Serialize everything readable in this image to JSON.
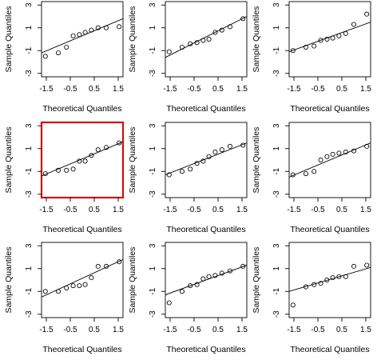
{
  "chart_data": [
    {
      "type": "scatter",
      "panel": 1,
      "highlighted": false,
      "xlabel": "Theoretical Quantiles",
      "ylabel": "Sample Quantiles",
      "xlim": [
        -1.7,
        1.7
      ],
      "ylim": [
        -3.3,
        3.3
      ],
      "x_ticks": [
        "-1.5",
        "-0.5",
        "0.5",
        "1.5"
      ],
      "y_ticks": [
        "3",
        "1",
        "-1",
        "-3"
      ],
      "points": [
        [
          -1.54,
          -1.5
        ],
        [
          -1.0,
          -1.2
        ],
        [
          -0.66,
          -0.7
        ],
        [
          -0.38,
          0.3
        ],
        [
          -0.12,
          0.4
        ],
        [
          0.12,
          0.6
        ],
        [
          0.38,
          0.8
        ],
        [
          0.66,
          1.0
        ],
        [
          1.0,
          1.0
        ],
        [
          1.54,
          1.1
        ]
      ],
      "line": [
        [
          -1.7,
          -1.2
        ],
        [
          1.7,
          1.8
        ]
      ]
    },
    {
      "type": "scatter",
      "panel": 2,
      "highlighted": false,
      "xlabel": "Theoretical Quantiles",
      "ylabel": "Sample Quantiles",
      "xlim": [
        -1.7,
        1.7
      ],
      "ylim": [
        -3.3,
        3.3
      ],
      "x_ticks": [
        "-1.5",
        "-0.5",
        "0.5",
        "1.5"
      ],
      "y_ticks": [
        "3",
        "1",
        "-1",
        "-3"
      ],
      "points": [
        [
          -1.54,
          -1.1
        ],
        [
          -1.0,
          -0.7
        ],
        [
          -0.66,
          -0.4
        ],
        [
          -0.38,
          -0.3
        ],
        [
          -0.12,
          -0.1
        ],
        [
          0.12,
          0.0
        ],
        [
          0.38,
          0.6
        ],
        [
          0.66,
          0.8
        ],
        [
          1.0,
          1.1
        ],
        [
          1.54,
          1.8
        ]
      ],
      "line": [
        [
          -1.7,
          -1.6
        ],
        [
          1.7,
          2.0
        ]
      ]
    },
    {
      "type": "scatter",
      "panel": 3,
      "highlighted": false,
      "xlabel": "Theoretical Quantiles",
      "ylabel": "Sample Quantiles",
      "xlim": [
        -1.7,
        1.7
      ],
      "ylim": [
        -3.3,
        3.3
      ],
      "x_ticks": [
        "-1.5",
        "-0.5",
        "0.5",
        "1.5"
      ],
      "y_ticks": [
        "3",
        "1",
        "-1",
        "-3"
      ],
      "points": [
        [
          -1.54,
          -1.0
        ],
        [
          -1.0,
          -0.7
        ],
        [
          -0.66,
          -0.6
        ],
        [
          -0.38,
          -0.1
        ],
        [
          -0.12,
          0.0
        ],
        [
          0.12,
          0.1
        ],
        [
          0.38,
          0.3
        ],
        [
          0.66,
          0.5
        ],
        [
          1.0,
          1.3
        ],
        [
          1.54,
          2.2
        ]
      ],
      "line": [
        [
          -1.7,
          -1.1
        ],
        [
          1.7,
          1.5
        ]
      ]
    },
    {
      "type": "scatter",
      "panel": 4,
      "highlighted": true,
      "xlabel": "Theoretical Quantiles",
      "ylabel": "Sample Quantiles",
      "xlim": [
        -1.7,
        1.7
      ],
      "ylim": [
        -3.3,
        3.3
      ],
      "x_ticks": [
        "-1.5",
        "-0.5",
        "0.5",
        "1.5"
      ],
      "y_ticks": [
        "3",
        "1",
        "-1",
        "-3"
      ],
      "points": [
        [
          -1.54,
          -1.2
        ],
        [
          -1.0,
          -0.9
        ],
        [
          -0.66,
          -0.9
        ],
        [
          -0.38,
          -0.8
        ],
        [
          -0.12,
          -0.1
        ],
        [
          0.12,
          -0.1
        ],
        [
          0.38,
          0.4
        ],
        [
          0.66,
          0.9
        ],
        [
          1.0,
          1.1
        ],
        [
          1.54,
          1.5
        ]
      ],
      "line": [
        [
          -1.7,
          -1.4
        ],
        [
          1.7,
          1.6
        ]
      ]
    },
    {
      "type": "scatter",
      "panel": 5,
      "highlighted": false,
      "xlabel": "Theoretical Quantiles",
      "ylabel": "Sample Quantiles",
      "xlim": [
        -1.7,
        1.7
      ],
      "ylim": [
        -3.3,
        3.3
      ],
      "x_ticks": [
        "-1.5",
        "-0.5",
        "0.5",
        "1.5"
      ],
      "y_ticks": [
        "3",
        "1",
        "-1",
        "-3"
      ],
      "points": [
        [
          -1.54,
          -1.3
        ],
        [
          -1.0,
          -1.0
        ],
        [
          -0.66,
          -0.8
        ],
        [
          -0.38,
          -0.3
        ],
        [
          -0.12,
          -0.1
        ],
        [
          0.12,
          0.3
        ],
        [
          0.38,
          0.7
        ],
        [
          0.66,
          0.9
        ],
        [
          1.0,
          1.2
        ],
        [
          1.54,
          1.3
        ]
      ],
      "line": [
        [
          -1.7,
          -1.3
        ],
        [
          1.7,
          1.5
        ]
      ]
    },
    {
      "type": "scatter",
      "panel": 6,
      "highlighted": false,
      "xlabel": "Theoretical Quantiles",
      "ylabel": "Sample Quantiles",
      "xlim": [
        -1.7,
        1.7
      ],
      "ylim": [
        -3.3,
        3.3
      ],
      "x_ticks": [
        "-1.5",
        "-0.5",
        "0.5",
        "1.5"
      ],
      "y_ticks": [
        "3",
        "1",
        "-1",
        "-3"
      ],
      "points": [
        [
          -1.54,
          -1.3
        ],
        [
          -1.0,
          -1.2
        ],
        [
          -0.66,
          -1.0
        ],
        [
          -0.38,
          0.0
        ],
        [
          -0.12,
          0.3
        ],
        [
          0.12,
          0.5
        ],
        [
          0.38,
          0.6
        ],
        [
          0.66,
          0.7
        ],
        [
          1.0,
          0.8
        ],
        [
          1.54,
          1.2
        ]
      ],
      "line": [
        [
          -1.7,
          -1.5
        ],
        [
          1.7,
          1.5
        ]
      ]
    },
    {
      "type": "scatter",
      "panel": 7,
      "highlighted": false,
      "xlabel": "Theoretical Quantiles",
      "ylabel": "Sample Quantiles",
      "xlim": [
        -1.7,
        1.7
      ],
      "ylim": [
        -3.3,
        3.3
      ],
      "x_ticks": [
        "-1.5",
        "-0.5",
        "0.5",
        "1.5"
      ],
      "y_ticks": [
        "3",
        "1",
        "-1",
        "-3"
      ],
      "points": [
        [
          -1.54,
          -1.0
        ],
        [
          -1.0,
          -1.0
        ],
        [
          -0.66,
          -0.7
        ],
        [
          -0.38,
          -0.5
        ],
        [
          -0.12,
          -0.5
        ],
        [
          0.12,
          -0.4
        ],
        [
          0.38,
          0.2
        ],
        [
          0.66,
          1.2
        ],
        [
          1.0,
          1.2
        ],
        [
          1.54,
          1.6
        ]
      ],
      "line": [
        [
          -1.7,
          -1.5
        ],
        [
          1.7,
          1.8
        ]
      ]
    },
    {
      "type": "scatter",
      "panel": 8,
      "highlighted": false,
      "xlabel": "Theoretical Quantiles",
      "ylabel": "Sample Quantiles",
      "xlim": [
        -1.7,
        1.7
      ],
      "ylim": [
        -3.3,
        3.3
      ],
      "x_ticks": [
        "-1.5",
        "-0.5",
        "0.5",
        "1.5"
      ],
      "y_ticks": [
        "3",
        "1",
        "-1",
        "-3"
      ],
      "points": [
        [
          -1.54,
          -2.0
        ],
        [
          -1.0,
          -1.0
        ],
        [
          -0.66,
          -0.5
        ],
        [
          -0.38,
          -0.4
        ],
        [
          -0.12,
          0.1
        ],
        [
          0.12,
          0.3
        ],
        [
          0.38,
          0.4
        ],
        [
          0.66,
          0.6
        ],
        [
          1.0,
          0.8
        ],
        [
          1.54,
          1.2
        ]
      ],
      "line": [
        [
          -1.7,
          -1.3
        ],
        [
          1.7,
          1.3
        ]
      ]
    },
    {
      "type": "scatter",
      "panel": 9,
      "highlighted": false,
      "xlabel": "Theoretical Quantiles",
      "ylabel": "Sample Quantiles",
      "xlim": [
        -1.7,
        1.7
      ],
      "ylim": [
        -3.3,
        3.3
      ],
      "x_ticks": [
        "-1.5",
        "-0.5",
        "0.5",
        "1.5"
      ],
      "y_ticks": [
        "3",
        "1",
        "-1",
        "-3"
      ],
      "points": [
        [
          -1.54,
          -2.2
        ],
        [
          -1.0,
          -0.6
        ],
        [
          -0.66,
          -0.4
        ],
        [
          -0.38,
          -0.3
        ],
        [
          -0.12,
          0.0
        ],
        [
          0.12,
          0.2
        ],
        [
          0.38,
          0.3
        ],
        [
          0.66,
          0.3
        ],
        [
          1.0,
          1.2
        ],
        [
          1.54,
          1.3
        ]
      ],
      "line": [
        [
          -1.7,
          -1.0
        ],
        [
          1.7,
          1.1
        ]
      ]
    }
  ],
  "colors": {
    "highlight": "#d01010",
    "ink": "#000000"
  }
}
